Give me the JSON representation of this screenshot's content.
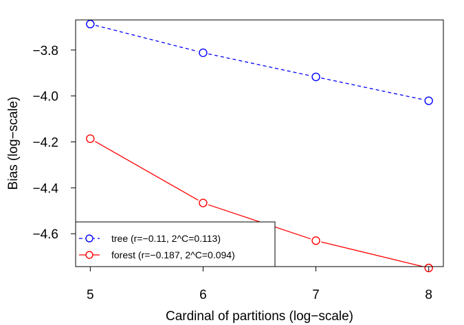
{
  "chart_data": {
    "type": "line",
    "xlabel": "Cardinal of partitions (log−scale)",
    "ylabel": "Bias (log−scale)",
    "x": [
      5,
      6,
      7,
      8
    ],
    "xlim": [
      4.87,
      8.13
    ],
    "ylim": [
      -4.743,
      -3.669
    ],
    "x_ticks": [
      5,
      6,
      7,
      8
    ],
    "x_tick_labels": [
      "5",
      "6",
      "7",
      "8"
    ],
    "y_ticks": [
      -4.6,
      -4.4,
      -4.2,
      -4.0,
      -3.8
    ],
    "y_tick_labels": [
      "−4.6",
      "−4.4",
      "−4.2",
      "−4.0",
      "−3.8"
    ],
    "grid": false,
    "legend_position": "bottom-left",
    "series": [
      {
        "name": "tree (r=−0.11, 2^C=0.113)",
        "values": [
          -3.687,
          -3.812,
          -3.917,
          -4.021
        ],
        "color": "#0000ff",
        "line_style": "dashed",
        "marker": "open-circle"
      },
      {
        "name": "forest (r=−0.187, 2^C=0.094)",
        "values": [
          -4.186,
          -4.466,
          -4.63,
          -4.749
        ],
        "color": "#ff0000",
        "line_style": "solid",
        "marker": "open-circle"
      }
    ]
  }
}
